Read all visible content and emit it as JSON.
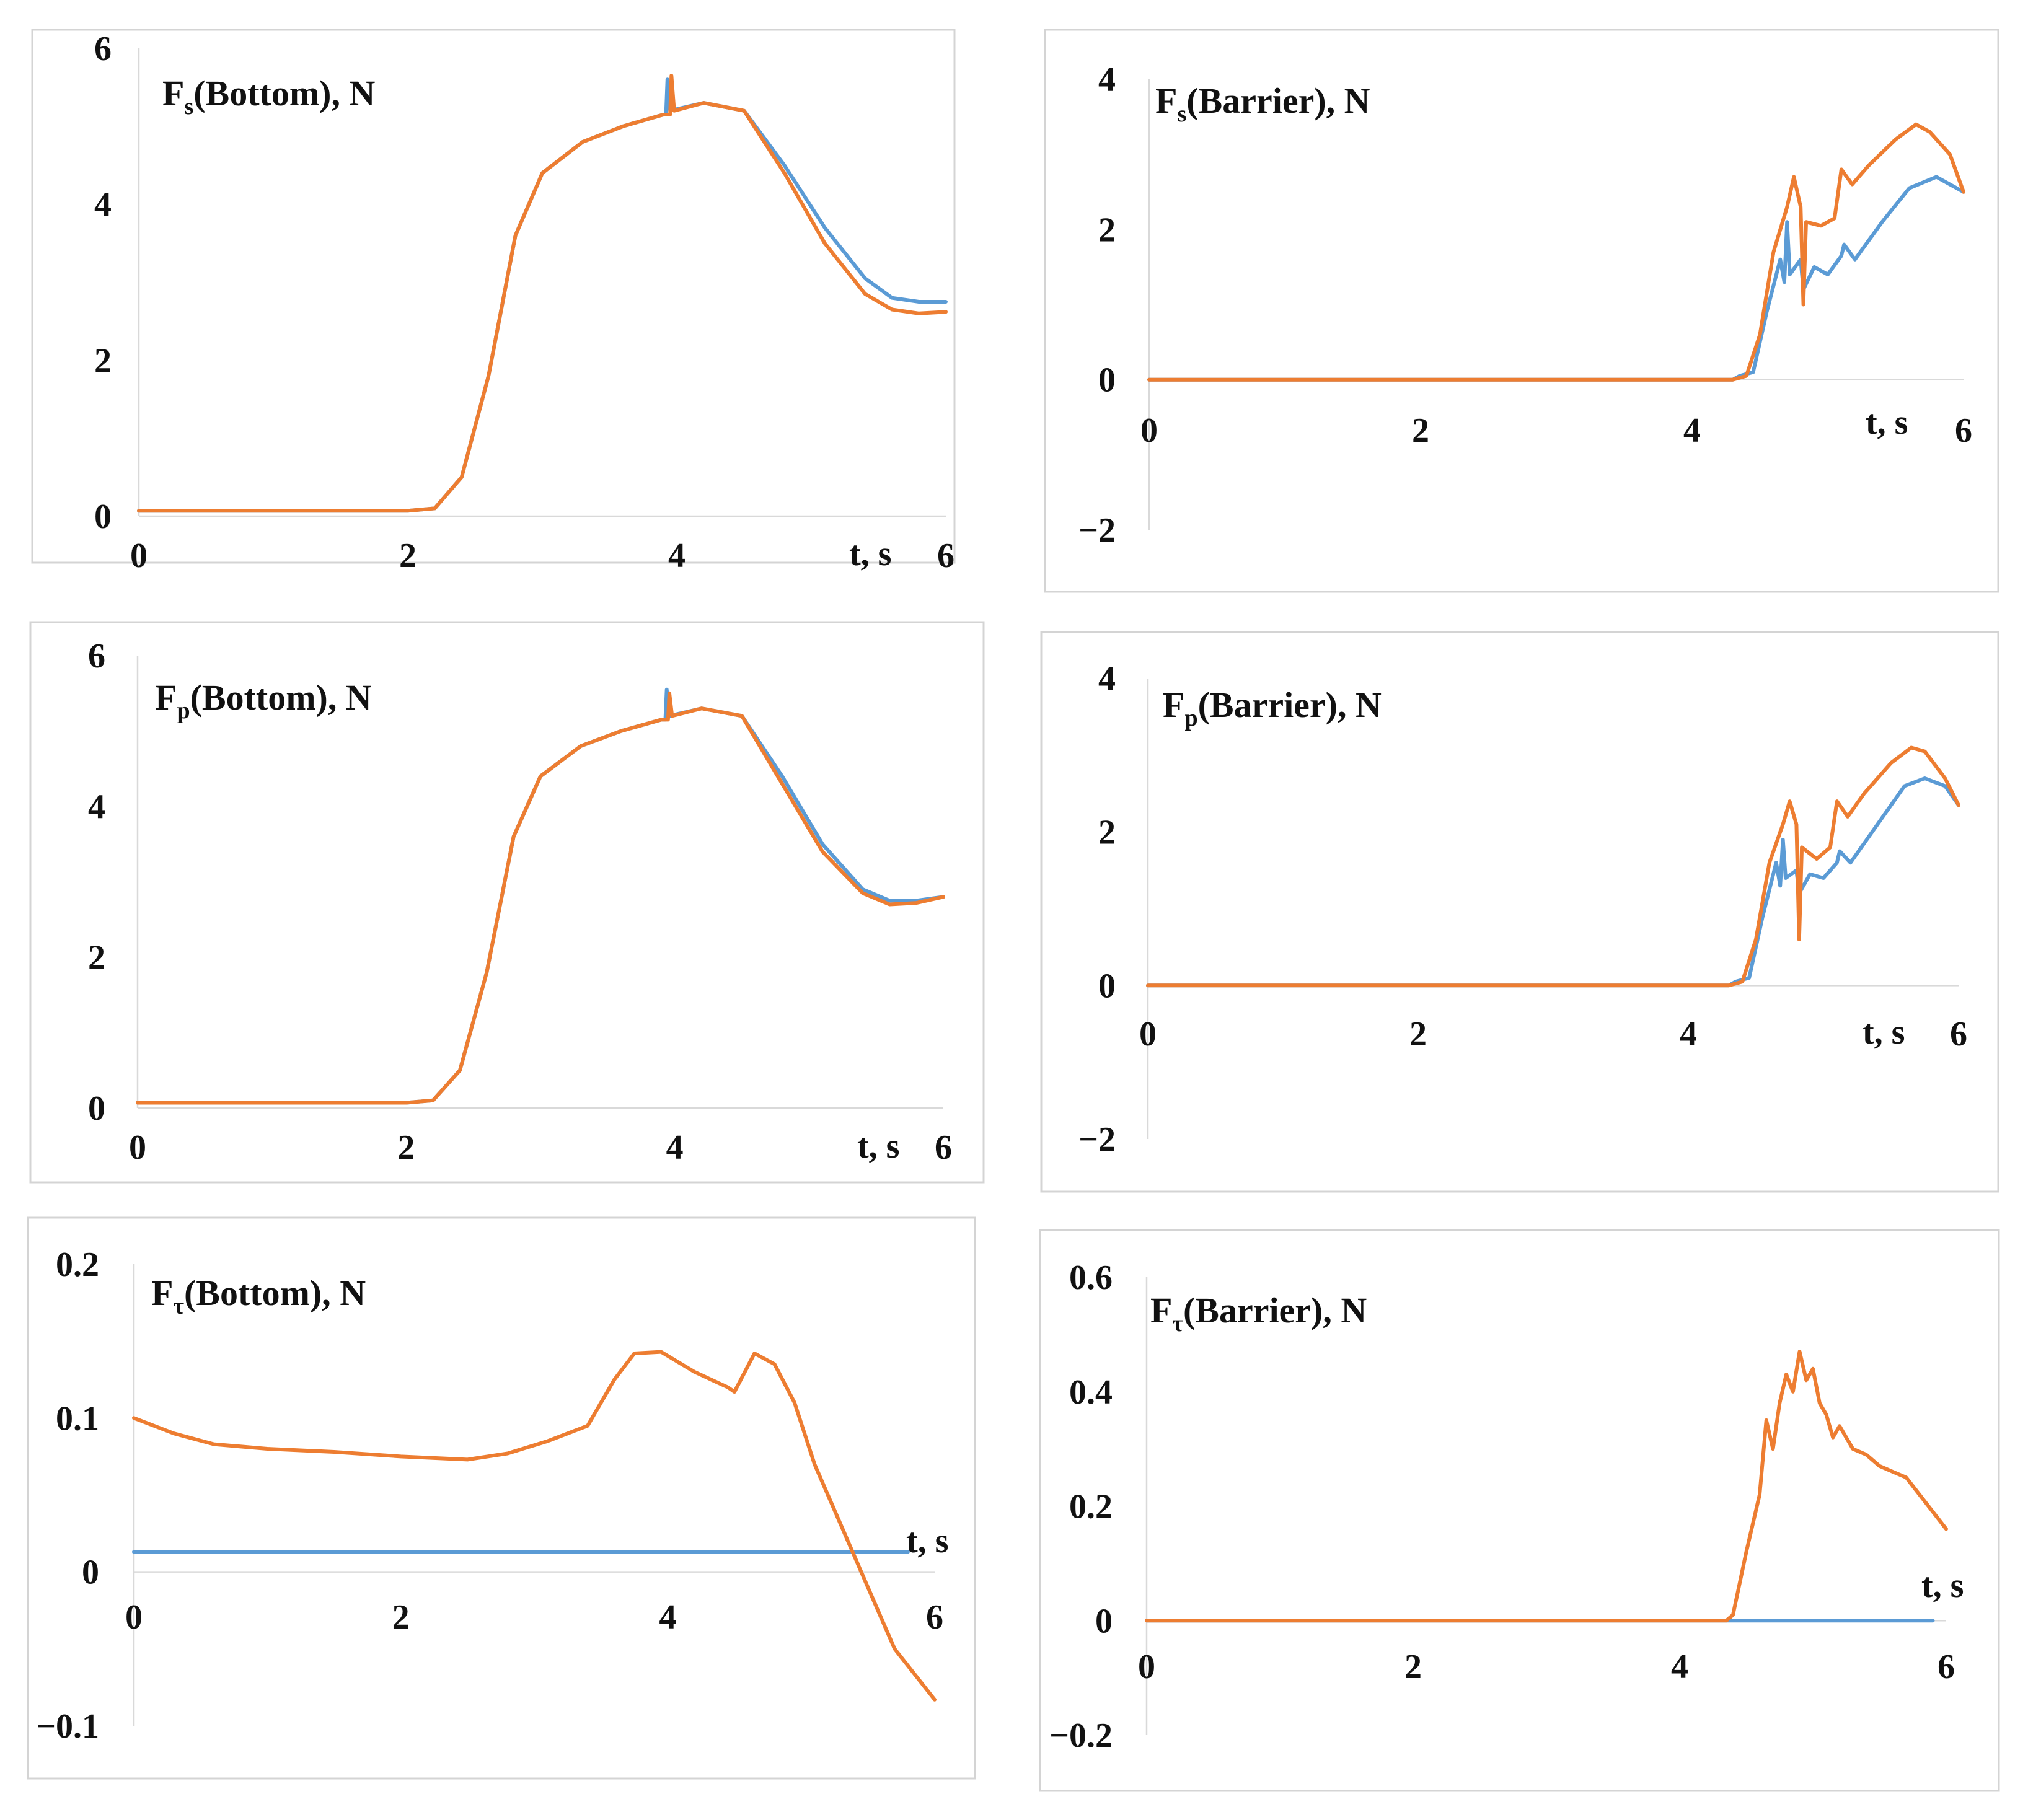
{
  "colors": {
    "series_blue": "#5b9bd5",
    "series_orange": "#ed7d31"
  },
  "chart_data": [
    {
      "type": "line",
      "id": "fs-bottom",
      "title": {
        "main": "F",
        "sub": "s",
        "rest": "(Bottom), N"
      },
      "xlabel": "t, s",
      "xlim": [
        0,
        6
      ],
      "ylim": [
        0,
        6
      ],
      "xticks": [
        "0",
        "2",
        "4",
        "6"
      ],
      "yticks": [
        "0",
        "2",
        "4",
        "6"
      ],
      "series": [
        {
          "name": "blue",
          "points": [
            [
              0,
              0.07
            ],
            [
              1,
              0.07
            ],
            [
              2,
              0.07
            ],
            [
              2.2,
              0.1
            ],
            [
              2.4,
              0.5
            ],
            [
              2.6,
              1.8
            ],
            [
              2.8,
              3.6
            ],
            [
              3,
              4.4
            ],
            [
              3.3,
              4.8
            ],
            [
              3.6,
              5.0
            ],
            [
              3.9,
              5.15
            ],
            [
              3.92,
              5.15
            ],
            [
              3.93,
              5.6
            ],
            [
              3.95,
              5.2
            ],
            [
              4.2,
              5.3
            ],
            [
              4.5,
              5.2
            ],
            [
              4.8,
              4.5
            ],
            [
              5.1,
              3.7
            ],
            [
              5.4,
              3.05
            ],
            [
              5.6,
              2.8
            ],
            [
              5.8,
              2.75
            ],
            [
              6,
              2.75
            ]
          ]
        },
        {
          "name": "orange",
          "points": [
            [
              0,
              0.07
            ],
            [
              1,
              0.07
            ],
            [
              2,
              0.07
            ],
            [
              2.2,
              0.1
            ],
            [
              2.4,
              0.5
            ],
            [
              2.6,
              1.8
            ],
            [
              2.8,
              3.6
            ],
            [
              3,
              4.4
            ],
            [
              3.3,
              4.8
            ],
            [
              3.6,
              5.0
            ],
            [
              3.9,
              5.15
            ],
            [
              3.95,
              5.15
            ],
            [
              3.96,
              5.65
            ],
            [
              3.98,
              5.2
            ],
            [
              4.2,
              5.3
            ],
            [
              4.5,
              5.2
            ],
            [
              4.8,
              4.4
            ],
            [
              5.1,
              3.5
            ],
            [
              5.4,
              2.85
            ],
            [
              5.6,
              2.65
            ],
            [
              5.8,
              2.6
            ],
            [
              6,
              2.62
            ]
          ]
        }
      ]
    },
    {
      "type": "line",
      "id": "fs-barrier",
      "title": {
        "main": "F",
        "sub": "s",
        "rest": "(Barrier), N"
      },
      "xlabel": "t, s",
      "xlim": [
        0,
        6
      ],
      "ylim": [
        -2,
        4
      ],
      "xticks": [
        "0",
        "2",
        "4",
        "6"
      ],
      "yticks": [
        "−2",
        "0",
        "2",
        "4"
      ],
      "series": [
        {
          "name": "blue",
          "points": [
            [
              0,
              0
            ],
            [
              4.3,
              0
            ],
            [
              4.35,
              0.05
            ],
            [
              4.45,
              0.1
            ],
            [
              4.55,
              0.9
            ],
            [
              4.65,
              1.6
            ],
            [
              4.68,
              1.3
            ],
            [
              4.7,
              2.1
            ],
            [
              4.72,
              1.4
            ],
            [
              4.8,
              1.6
            ],
            [
              4.82,
              1.2
            ],
            [
              4.9,
              1.5
            ],
            [
              5,
              1.4
            ],
            [
              5.1,
              1.65
            ],
            [
              5.12,
              1.8
            ],
            [
              5.2,
              1.6
            ],
            [
              5.4,
              2.1
            ],
            [
              5.6,
              2.55
            ],
            [
              5.8,
              2.7
            ],
            [
              6,
              2.5
            ]
          ]
        },
        {
          "name": "orange",
          "points": [
            [
              0,
              0
            ],
            [
              4.3,
              0
            ],
            [
              4.4,
              0.05
            ],
            [
              4.5,
              0.6
            ],
            [
              4.6,
              1.7
            ],
            [
              4.7,
              2.3
            ],
            [
              4.75,
              2.7
            ],
            [
              4.8,
              2.3
            ],
            [
              4.82,
              1.0
            ],
            [
              4.84,
              2.1
            ],
            [
              4.95,
              2.05
            ],
            [
              5.05,
              2.15
            ],
            [
              5.1,
              2.8
            ],
            [
              5.18,
              2.6
            ],
            [
              5.3,
              2.85
            ],
            [
              5.5,
              3.2
            ],
            [
              5.65,
              3.4
            ],
            [
              5.75,
              3.3
            ],
            [
              5.9,
              3.0
            ],
            [
              6,
              2.5
            ]
          ]
        }
      ]
    },
    {
      "type": "line",
      "id": "fp-bottom",
      "title": {
        "main": "F",
        "sub": "p",
        "rest": "(Bottom), N"
      },
      "xlabel": "t, s",
      "xlim": [
        0,
        6
      ],
      "ylim": [
        0,
        6
      ],
      "xticks": [
        "0",
        "2",
        "4",
        "6"
      ],
      "yticks": [
        "0",
        "2",
        "4",
        "6"
      ],
      "series": [
        {
          "name": "blue",
          "points": [
            [
              0,
              0.07
            ],
            [
              1,
              0.07
            ],
            [
              2,
              0.07
            ],
            [
              2.2,
              0.1
            ],
            [
              2.4,
              0.5
            ],
            [
              2.6,
              1.8
            ],
            [
              2.8,
              3.6
            ],
            [
              3,
              4.4
            ],
            [
              3.3,
              4.8
            ],
            [
              3.6,
              5.0
            ],
            [
              3.9,
              5.15
            ],
            [
              3.93,
              5.15
            ],
            [
              3.94,
              5.55
            ],
            [
              3.96,
              5.2
            ],
            [
              4.2,
              5.3
            ],
            [
              4.5,
              5.2
            ],
            [
              4.8,
              4.4
            ],
            [
              5.1,
              3.5
            ],
            [
              5.4,
              2.9
            ],
            [
              5.6,
              2.75
            ],
            [
              5.8,
              2.75
            ],
            [
              6,
              2.8
            ]
          ]
        },
        {
          "name": "orange",
          "points": [
            [
              0,
              0.07
            ],
            [
              1,
              0.07
            ],
            [
              2,
              0.07
            ],
            [
              2.2,
              0.1
            ],
            [
              2.4,
              0.5
            ],
            [
              2.6,
              1.8
            ],
            [
              2.8,
              3.6
            ],
            [
              3,
              4.4
            ],
            [
              3.3,
              4.8
            ],
            [
              3.6,
              5.0
            ],
            [
              3.9,
              5.15
            ],
            [
              3.95,
              5.15
            ],
            [
              3.96,
              5.5
            ],
            [
              3.98,
              5.2
            ],
            [
              4.2,
              5.3
            ],
            [
              4.5,
              5.2
            ],
            [
              4.8,
              4.3
            ],
            [
              5.1,
              3.4
            ],
            [
              5.4,
              2.85
            ],
            [
              5.6,
              2.7
            ],
            [
              5.8,
              2.72
            ],
            [
              6,
              2.8
            ]
          ]
        }
      ]
    },
    {
      "type": "line",
      "id": "fp-barrier",
      "title": {
        "main": "F",
        "sub": "p",
        "rest": "(Barrier), N"
      },
      "xlabel": "t, s",
      "xlim": [
        0,
        6
      ],
      "ylim": [
        -2,
        4
      ],
      "xticks": [
        "0",
        "2",
        "4",
        "6"
      ],
      "yticks": [
        "−2",
        "0",
        "2",
        "4"
      ],
      "series": [
        {
          "name": "blue",
          "points": [
            [
              0,
              0
            ],
            [
              4.3,
              0
            ],
            [
              4.35,
              0.05
            ],
            [
              4.45,
              0.1
            ],
            [
              4.55,
              0.9
            ],
            [
              4.65,
              1.6
            ],
            [
              4.68,
              1.3
            ],
            [
              4.7,
              1.9
            ],
            [
              4.72,
              1.4
            ],
            [
              4.8,
              1.5
            ],
            [
              4.82,
              1.2
            ],
            [
              4.9,
              1.45
            ],
            [
              5,
              1.4
            ],
            [
              5.1,
              1.6
            ],
            [
              5.12,
              1.75
            ],
            [
              5.2,
              1.6
            ],
            [
              5.4,
              2.1
            ],
            [
              5.6,
              2.6
            ],
            [
              5.75,
              2.7
            ],
            [
              5.9,
              2.6
            ],
            [
              6,
              2.35
            ]
          ]
        },
        {
          "name": "orange",
          "points": [
            [
              0,
              0
            ],
            [
              4.3,
              0
            ],
            [
              4.4,
              0.05
            ],
            [
              4.5,
              0.6
            ],
            [
              4.6,
              1.6
            ],
            [
              4.7,
              2.1
            ],
            [
              4.75,
              2.4
            ],
            [
              4.8,
              2.1
            ],
            [
              4.82,
              0.6
            ],
            [
              4.84,
              1.8
            ],
            [
              4.95,
              1.65
            ],
            [
              5.05,
              1.8
            ],
            [
              5.1,
              2.4
            ],
            [
              5.18,
              2.2
            ],
            [
              5.3,
              2.5
            ],
            [
              5.5,
              2.9
            ],
            [
              5.65,
              3.1
            ],
            [
              5.75,
              3.05
            ],
            [
              5.9,
              2.7
            ],
            [
              6,
              2.35
            ]
          ]
        }
      ]
    },
    {
      "type": "line",
      "id": "ft-bottom",
      "title": {
        "main": "F",
        "sub": "τ",
        "rest": "(Bottom), N"
      },
      "xlabel": "t, s",
      "xlim": [
        0,
        6
      ],
      "ylim": [
        -0.1,
        0.2
      ],
      "xticks": [
        "0",
        "2",
        "4",
        "6"
      ],
      "yticks": [
        "−0.1",
        "0",
        "0.1",
        "0.2"
      ],
      "series": [
        {
          "name": "blue",
          "points": [
            [
              0,
              0.013
            ],
            [
              5.8,
              0.013
            ]
          ]
        },
        {
          "name": "orange",
          "points": [
            [
              0,
              0.1
            ],
            [
              0.3,
              0.09
            ],
            [
              0.6,
              0.083
            ],
            [
              1,
              0.08
            ],
            [
              1.5,
              0.078
            ],
            [
              2,
              0.075
            ],
            [
              2.5,
              0.073
            ],
            [
              2.8,
              0.077
            ],
            [
              3.1,
              0.085
            ],
            [
              3.4,
              0.095
            ],
            [
              3.6,
              0.125
            ],
            [
              3.75,
              0.142
            ],
            [
              3.95,
              0.143
            ],
            [
              4.2,
              0.13
            ],
            [
              4.45,
              0.12
            ],
            [
              4.5,
              0.117
            ],
            [
              4.65,
              0.142
            ],
            [
              4.8,
              0.135
            ],
            [
              4.95,
              0.11
            ],
            [
              5.1,
              0.07
            ],
            [
              5.3,
              0.03
            ],
            [
              5.5,
              -0.01
            ],
            [
              5.7,
              -0.05
            ],
            [
              6,
              -0.083
            ]
          ]
        }
      ]
    },
    {
      "type": "line",
      "id": "ft-barrier",
      "title": {
        "main": "F",
        "sub": "τ",
        "rest": "(Barrier), N"
      },
      "xlabel": "t, s",
      "xlim": [
        0,
        6
      ],
      "ylim": [
        -0.2,
        0.6
      ],
      "xticks": [
        "0",
        "2",
        "4",
        "6"
      ],
      "yticks": [
        "−0.2",
        "0",
        "0.2",
        "0.4",
        "0.6"
      ],
      "series": [
        {
          "name": "blue",
          "points": [
            [
              0,
              0
            ],
            [
              5.9,
              0
            ]
          ]
        },
        {
          "name": "orange",
          "points": [
            [
              0,
              0
            ],
            [
              4.35,
              0
            ],
            [
              4.4,
              0.01
            ],
            [
              4.5,
              0.12
            ],
            [
              4.6,
              0.22
            ],
            [
              4.65,
              0.35
            ],
            [
              4.7,
              0.3
            ],
            [
              4.75,
              0.38
            ],
            [
              4.8,
              0.43
            ],
            [
              4.85,
              0.4
            ],
            [
              4.9,
              0.47
            ],
            [
              4.95,
              0.42
            ],
            [
              5,
              0.44
            ],
            [
              5.05,
              0.38
            ],
            [
              5.1,
              0.36
            ],
            [
              5.15,
              0.32
            ],
            [
              5.2,
              0.34
            ],
            [
              5.3,
              0.3
            ],
            [
              5.4,
              0.29
            ],
            [
              5.5,
              0.27
            ],
            [
              5.6,
              0.26
            ],
            [
              5.7,
              0.25
            ],
            [
              5.8,
              0.22
            ],
            [
              5.9,
              0.19
            ],
            [
              6,
              0.16
            ]
          ]
        }
      ]
    }
  ]
}
